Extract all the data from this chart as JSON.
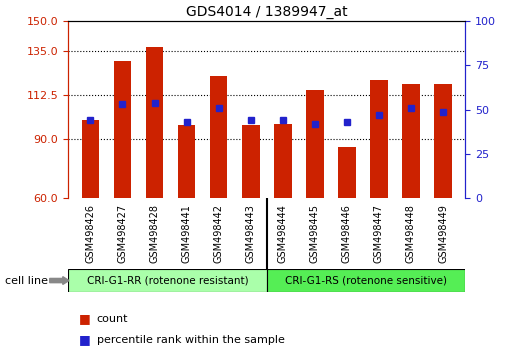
{
  "title": "GDS4014 / 1389947_at",
  "categories": [
    "GSM498426",
    "GSM498427",
    "GSM498428",
    "GSM498441",
    "GSM498442",
    "GSM498443",
    "GSM498444",
    "GSM498445",
    "GSM498446",
    "GSM498447",
    "GSM498448",
    "GSM498449"
  ],
  "bar_values": [
    100,
    130,
    137,
    97,
    122,
    97,
    98,
    115,
    86,
    120,
    118,
    118
  ],
  "percentile_values": [
    44,
    53,
    54,
    43,
    51,
    44,
    44,
    42,
    43,
    47,
    51,
    49
  ],
  "ylim_left": [
    60,
    150
  ],
  "ylim_right": [
    0,
    100
  ],
  "yticks_left": [
    60,
    90,
    112.5,
    135,
    150
  ],
  "yticks_right": [
    0,
    25,
    50,
    75,
    100
  ],
  "bar_color": "#cc2200",
  "percentile_color": "#2222cc",
  "grid_color": "#000000",
  "background_color": "#ffffff",
  "plot_bg_color": "#ffffff",
  "tick_bg_color": "#d0d0d0",
  "left_label_color": "#cc2200",
  "right_label_color": "#2222cc",
  "group1_label": "CRI-G1-RR (rotenone resistant)",
  "group2_label": "CRI-G1-RS (rotenone sensitive)",
  "group1_color": "#aaffaa",
  "group2_color": "#55ee55",
  "cell_line_label": "cell line",
  "legend_count": "count",
  "legend_percentile": "percentile rank within the sample",
  "n_group1": 6,
  "n_group2": 6
}
